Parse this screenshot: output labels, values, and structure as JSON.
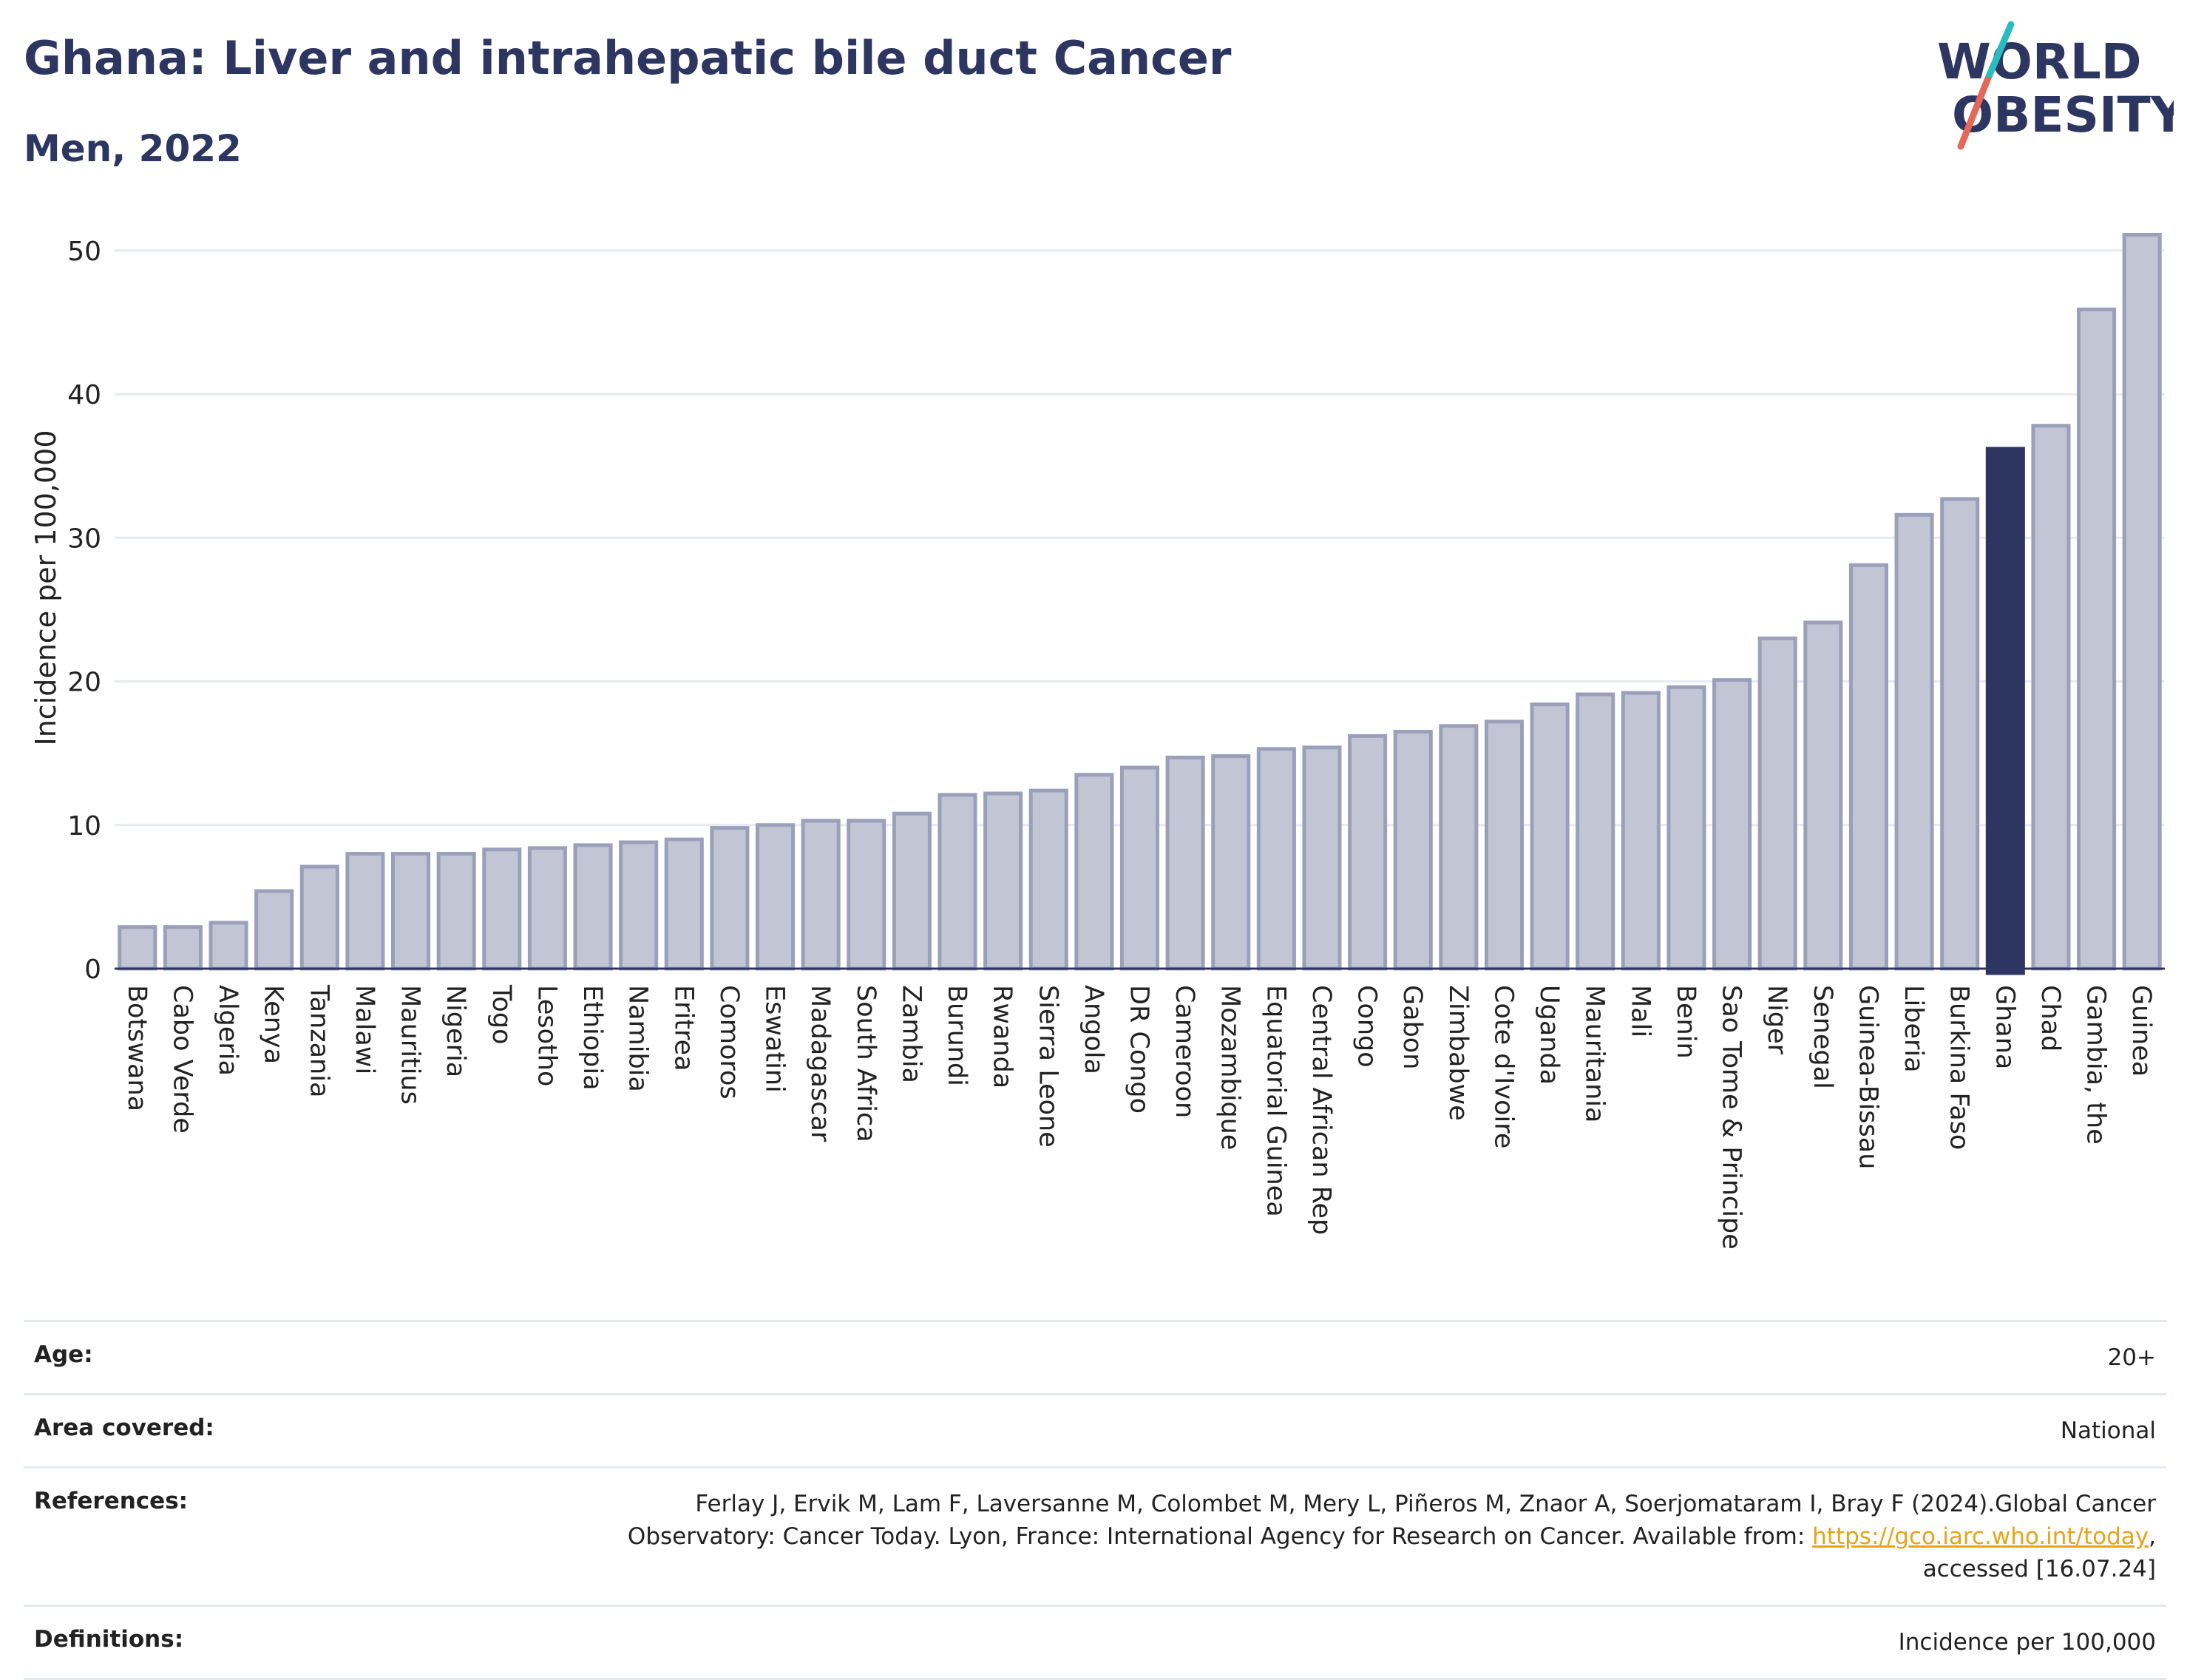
{
  "header": {
    "title": "Ghana: Liver and intrahepatic bile duct Cancer",
    "subtitle": "Men, 2022"
  },
  "logo": {
    "line1": "WORLD",
    "line2": "OBESITY",
    "slash_color_top": "#2bbcc0",
    "slash_color_bottom": "#e3685a"
  },
  "colors": {
    "bar": "#c2c6d4",
    "bar_border": "#9aa0ba",
    "highlight": "#2d3561",
    "title": "#2d3561"
  },
  "chart_data": {
    "type": "bar",
    "ylabel": "Incidence per 100,000",
    "ylim": [
      0,
      52
    ],
    "yticks": [
      0,
      10,
      20,
      30,
      40,
      50
    ],
    "highlight": "Ghana",
    "grid": true,
    "categories": [
      "Botswana",
      "Cabo Verde",
      "Algeria",
      "Kenya",
      "Tanzania",
      "Malawi",
      "Mauritius",
      "Nigeria",
      "Togo",
      "Lesotho",
      "Ethiopia",
      "Namibia",
      "Eritrea",
      "Comoros",
      "Eswatini",
      "Madagascar",
      "South Africa",
      "Zambia",
      "Burundi",
      "Rwanda",
      "Sierra Leone",
      "Angola",
      "DR Congo",
      "Cameroon",
      "Mozambique",
      "Equatorial Guinea",
      "Central African Rep",
      "Congo",
      "Gabon",
      "Zimbabwe",
      "Cote d'Ivoire",
      "Uganda",
      "Mauritania",
      "Mali",
      "Benin",
      "Sao Tome & Principe",
      "Niger",
      "Senegal",
      "Guinea-Bissau",
      "Liberia",
      "Burkina Faso",
      "Ghana",
      "Chad",
      "Gambia, the",
      "Guinea"
    ],
    "values": [
      2.9,
      2.9,
      3.2,
      5.4,
      7.1,
      8.0,
      8.0,
      8.0,
      8.3,
      8.4,
      8.6,
      8.8,
      9.0,
      9.8,
      10.0,
      10.3,
      10.3,
      10.8,
      12.1,
      12.2,
      12.4,
      13.5,
      14.0,
      14.7,
      14.8,
      15.3,
      15.4,
      16.2,
      16.5,
      16.9,
      17.2,
      18.4,
      19.1,
      19.2,
      19.6,
      20.1,
      23.0,
      24.1,
      28.1,
      31.6,
      32.7,
      36.2,
      37.8,
      45.9,
      51.1
    ]
  },
  "meta": {
    "age_label": "Age:",
    "age_value": "20+",
    "area_label": "Area covered:",
    "area_value": "National",
    "references_label": "References:",
    "references_text_1": "Ferlay J, Ervik M, Lam F, Laversanne M, Colombet M, Mery L, Piñeros M, Znaor A, Soerjomataram I, Bray F (2024).Global Cancer",
    "references_text_2": "Observatory: Cancer Today. Lyon, France: International Agency for Research on Cancer. Available from: ",
    "references_link": "https://gco.iarc.who.int/today",
    "references_text_3": ",",
    "references_text_4": "accessed [16.07.24]",
    "definitions_label": "Definitions:",
    "definitions_value": "Incidence per 100,000"
  }
}
